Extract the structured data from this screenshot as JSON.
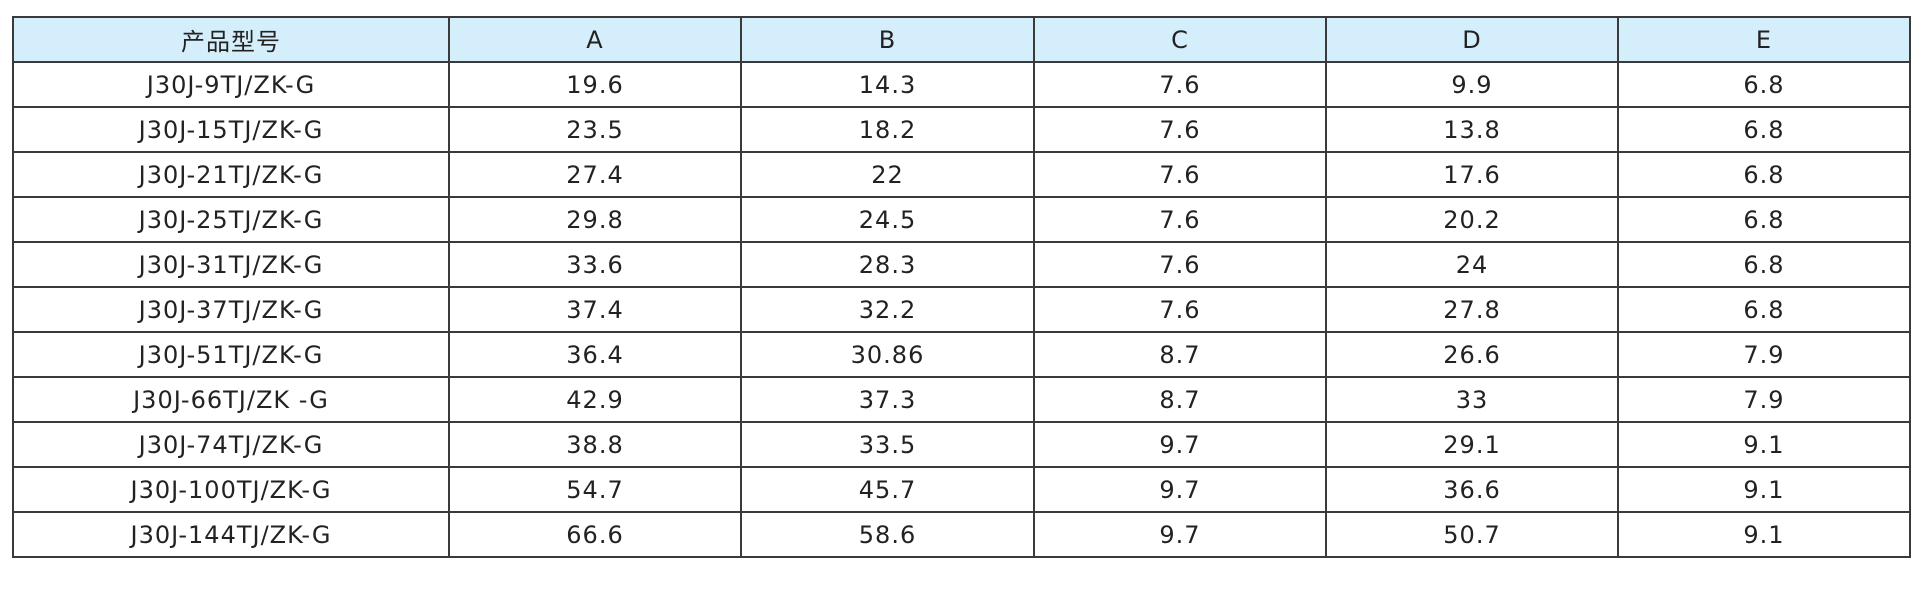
{
  "table": {
    "header": [
      "产品型号",
      "A",
      "B",
      "C",
      "D",
      "E"
    ],
    "rows": [
      [
        "J30J-9TJ/ZK-G",
        "19.6",
        "14.3",
        "7.6",
        "9.9",
        "6.8"
      ],
      [
        "J30J-15TJ/ZK-G",
        "23.5",
        "18.2",
        "7.6",
        "13.8",
        "6.8"
      ],
      [
        "J30J-21TJ/ZK-G",
        "27.4",
        "22",
        "7.6",
        "17.6",
        "6.8"
      ],
      [
        "J30J-25TJ/ZK-G",
        "29.8",
        "24.5",
        "7.6",
        "20.2",
        "6.8"
      ],
      [
        "J30J-31TJ/ZK-G",
        "33.6",
        "28.3",
        "7.6",
        "24",
        "6.8"
      ],
      [
        "J30J-37TJ/ZK-G",
        "37.4",
        "32.2",
        "7.6",
        "27.8",
        "6.8"
      ],
      [
        "J30J-51TJ/ZK-G",
        "36.4",
        "30.86",
        "8.7",
        "26.6",
        "7.9"
      ],
      [
        "J30J-66TJ/ZK -G",
        "42.9",
        "37.3",
        "8.7",
        "33",
        "7.9"
      ],
      [
        "J30J-74TJ/ZK-G",
        "38.8",
        "33.5",
        "9.7",
        "29.1",
        "9.1"
      ],
      [
        "J30J-100TJ/ZK-G",
        "54.7",
        "45.7",
        "9.7",
        "36.6",
        "9.1"
      ],
      [
        "J30J-144TJ/ZK-G",
        "66.6",
        "58.6",
        "9.7",
        "50.7",
        "9.1"
      ]
    ]
  }
}
